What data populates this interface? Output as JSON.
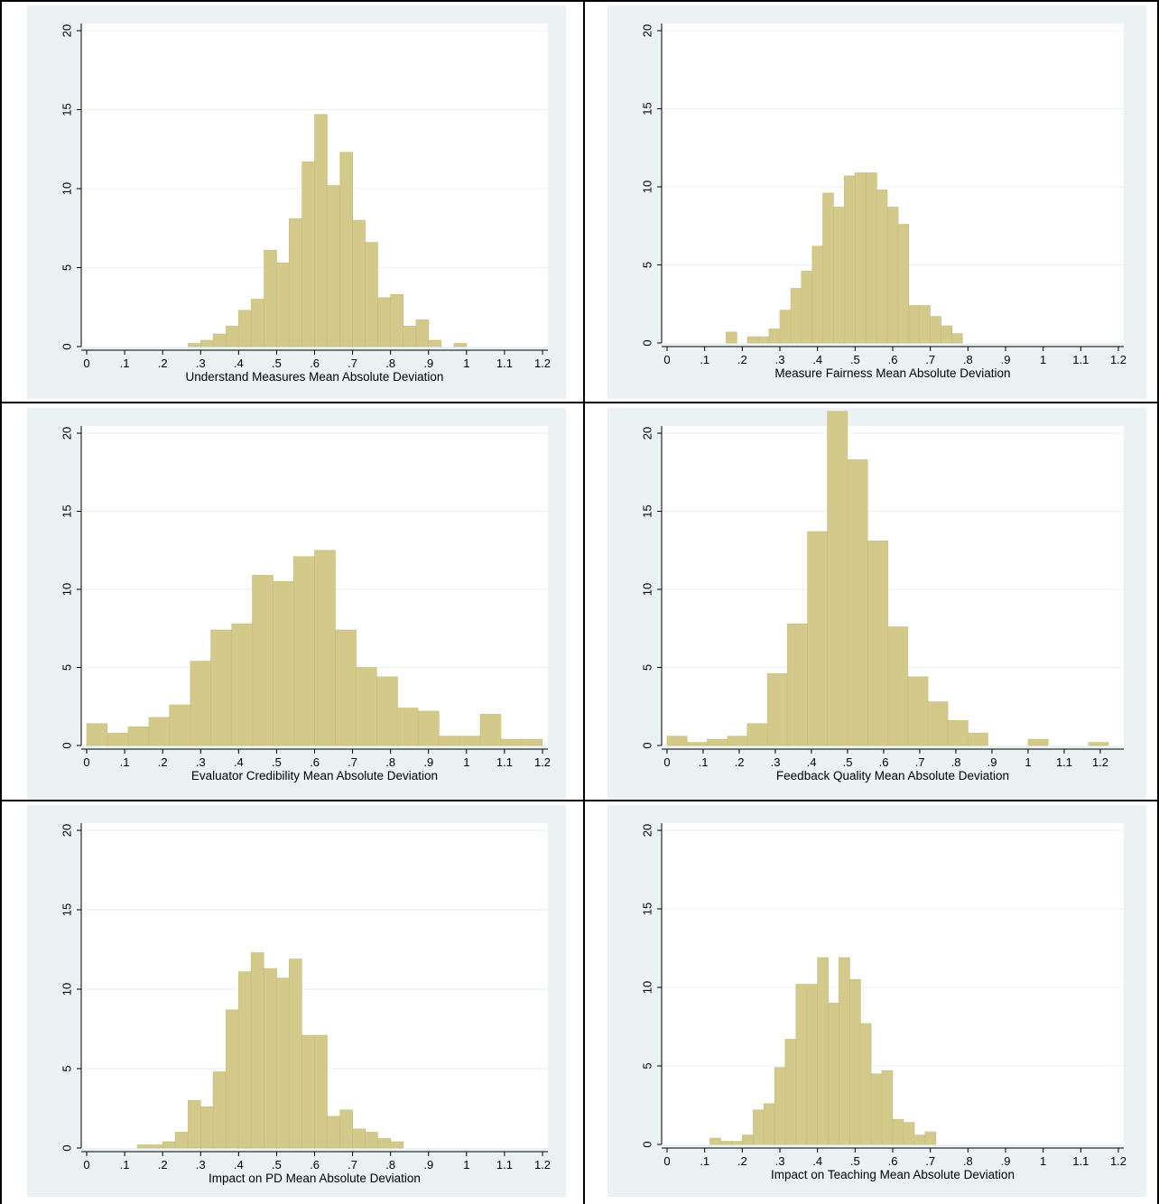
{
  "colors": {
    "plot_bg": "#eaf2f3",
    "plot_area": "#ffffff",
    "bar_fill": "#d2c98a",
    "bar_stroke": "#c8be74",
    "grid": "#eaf2f3",
    "axis": "#000000"
  },
  "chart_data": [
    {
      "type": "bar",
      "title": "",
      "xlabel": "Understand Measures Mean Absolute Deviation",
      "ylabel": "",
      "xlim": [
        0,
        1.2
      ],
      "ylim": [
        0,
        20
      ],
      "xticks": [
        "0",
        ".1",
        ".2",
        ".3",
        ".4",
        ".5",
        ".6",
        ".7",
        ".8",
        ".9",
        "1",
        "1.1",
        "1.2"
      ],
      "yticks": [
        "0",
        "5",
        "10",
        "15",
        "20"
      ],
      "grid": true,
      "bin_width": 0.0333,
      "bins_start": [
        0.267,
        0.3,
        0.333,
        0.367,
        0.4,
        0.433,
        0.467,
        0.5,
        0.533,
        0.567,
        0.6,
        0.633,
        0.667,
        0.7,
        0.733,
        0.767,
        0.8,
        0.833,
        0.867,
        0.9,
        0.933,
        0.967
      ],
      "values": [
        0.2,
        0.4,
        0.8,
        1.3,
        2.3,
        3.0,
        6.1,
        5.3,
        8.1,
        11.7,
        14.7,
        10.2,
        12.3,
        8.0,
        6.6,
        3.1,
        3.3,
        1.3,
        1.7,
        0.4,
        0,
        0.2
      ]
    },
    {
      "type": "bar",
      "title": "",
      "xlabel": "Measure Fairness Mean Absolute Deviation",
      "ylabel": "",
      "xlim": [
        0,
        1.2
      ],
      "ylim": [
        0,
        20
      ],
      "xticks": [
        "0",
        ".1",
        ".2",
        ".3",
        ".4",
        ".5",
        ".6",
        ".7",
        ".8",
        ".9",
        "1",
        "1.1",
        "1.2"
      ],
      "yticks": [
        "0",
        "5",
        "10",
        "15",
        "20"
      ],
      "grid": true,
      "bin_width": 0.0286,
      "bins_start": [
        0.157,
        0.186,
        0.214,
        0.243,
        0.271,
        0.3,
        0.329,
        0.357,
        0.386,
        0.414,
        0.443,
        0.471,
        0.5,
        0.529,
        0.557,
        0.586,
        0.614,
        0.643,
        0.671,
        0.7,
        0.729,
        0.757,
        0.786
      ],
      "values": [
        0.7,
        0,
        0.4,
        0.4,
        0.9,
        2.1,
        3.5,
        4.6,
        6.2,
        9.6,
        8.7,
        10.7,
        10.9,
        10.9,
        9.8,
        8.7,
        7.6,
        2.4,
        2.4,
        1.7,
        1.1,
        0.6,
        0
      ]
    },
    {
      "type": "bar",
      "title": "",
      "xlabel": "Evaluator Credibility Mean Absolute Deviation",
      "ylabel": "",
      "xlim": [
        0,
        1.2
      ],
      "ylim": [
        0,
        20
      ],
      "xticks": [
        "0",
        ".1",
        ".2",
        ".3",
        ".4",
        ".5",
        ".6",
        ".7",
        ".8",
        ".9",
        "1",
        "1.1",
        "1.2"
      ],
      "yticks": [
        "0",
        "5",
        "10",
        "15",
        "20"
      ],
      "grid": true,
      "bin_width": 0.0545,
      "bins_start": [
        0.0,
        0.055,
        0.109,
        0.164,
        0.218,
        0.273,
        0.327,
        0.382,
        0.436,
        0.491,
        0.545,
        0.6,
        0.655,
        0.709,
        0.764,
        0.818,
        0.873,
        0.927,
        0.982,
        1.036,
        1.091,
        1.145
      ],
      "values": [
        1.4,
        0.8,
        1.2,
        1.8,
        2.6,
        5.4,
        7.4,
        7.8,
        10.9,
        10.5,
        12.1,
        12.5,
        7.4,
        5.0,
        4.4,
        2.4,
        2.2,
        0.6,
        0.6,
        2.0,
        0.4,
        0.4
      ]
    },
    {
      "type": "bar",
      "title": "",
      "xlabel": "Feedback Quality Mean Absolute Deviation",
      "ylabel": "",
      "xlim": [
        0,
        1.25
      ],
      "ylim": [
        0,
        20
      ],
      "xticks": [
        "0",
        ".1",
        ".2",
        ".3",
        ".4",
        ".5",
        ".6",
        ".7",
        ".8",
        ".9",
        "1",
        "1.1",
        "1.2"
      ],
      "yticks": [
        "0",
        "5",
        "10",
        "15",
        "20"
      ],
      "grid": true,
      "bin_width": 0.0556,
      "bins_start": [
        0.0,
        0.056,
        0.111,
        0.167,
        0.222,
        0.278,
        0.333,
        0.389,
        0.444,
        0.5,
        0.556,
        0.611,
        0.667,
        0.722,
        0.778,
        0.833,
        0.889,
        0.944,
        1.0,
        1.056,
        1.111,
        1.167
      ],
      "values": [
        0.6,
        0.2,
        0.4,
        0.6,
        1.4,
        4.6,
        7.8,
        13.7,
        21.4,
        18.3,
        13.1,
        7.6,
        4.4,
        2.8,
        1.6,
        0.8,
        0,
        0,
        0.4,
        0,
        0,
        0.2
      ]
    },
    {
      "type": "bar",
      "title": "",
      "xlabel": "Impact on PD Mean Absolute Deviation",
      "ylabel": "",
      "xlim": [
        0,
        1.2
      ],
      "ylim": [
        0,
        20
      ],
      "xticks": [
        "0",
        ".1",
        ".2",
        ".3",
        ".4",
        ".5",
        ".6",
        ".7",
        ".8",
        ".9",
        "1",
        "1.1",
        "1.2"
      ],
      "yticks": [
        "0",
        "5",
        "10",
        "15",
        "20"
      ],
      "grid": true,
      "bin_width": 0.0333,
      "bins_start": [
        0.133,
        0.167,
        0.2,
        0.233,
        0.267,
        0.3,
        0.333,
        0.367,
        0.4,
        0.433,
        0.467,
        0.5,
        0.533,
        0.567,
        0.6,
        0.633,
        0.667,
        0.7,
        0.733,
        0.767,
        0.8
      ],
      "values": [
        0.2,
        0.2,
        0.4,
        1.0,
        3.0,
        2.6,
        4.8,
        8.7,
        11.1,
        12.3,
        11.3,
        10.7,
        11.9,
        7.1,
        7.1,
        2.0,
        2.4,
        1.2,
        1.0,
        0.6,
        0.4
      ]
    },
    {
      "type": "bar",
      "title": "",
      "xlabel": "Impact on Teaching Mean Absolute Deviation",
      "ylabel": "",
      "xlim": [
        0,
        1.2
      ],
      "ylim": [
        0,
        20
      ],
      "xticks": [
        "0",
        ".1",
        ".2",
        ".3",
        ".4",
        ".5",
        ".6",
        ".7",
        ".8",
        ".9",
        "1",
        "1.1",
        "1.2"
      ],
      "yticks": [
        "0",
        "5",
        "10",
        "15",
        "20"
      ],
      "grid": true,
      "bin_width": 0.0286,
      "bins_start": [
        0.114,
        0.143,
        0.171,
        0.2,
        0.229,
        0.257,
        0.286,
        0.314,
        0.343,
        0.371,
        0.4,
        0.429,
        0.457,
        0.486,
        0.514,
        0.543,
        0.571,
        0.6,
        0.629,
        0.657,
        0.686
      ],
      "values": [
        0.4,
        0.2,
        0.2,
        0.6,
        2.2,
        2.6,
        4.9,
        6.7,
        10.2,
        10.2,
        11.9,
        9.0,
        11.9,
        10.5,
        7.7,
        4.5,
        4.7,
        1.6,
        1.4,
        0.6,
        0.8
      ]
    }
  ]
}
